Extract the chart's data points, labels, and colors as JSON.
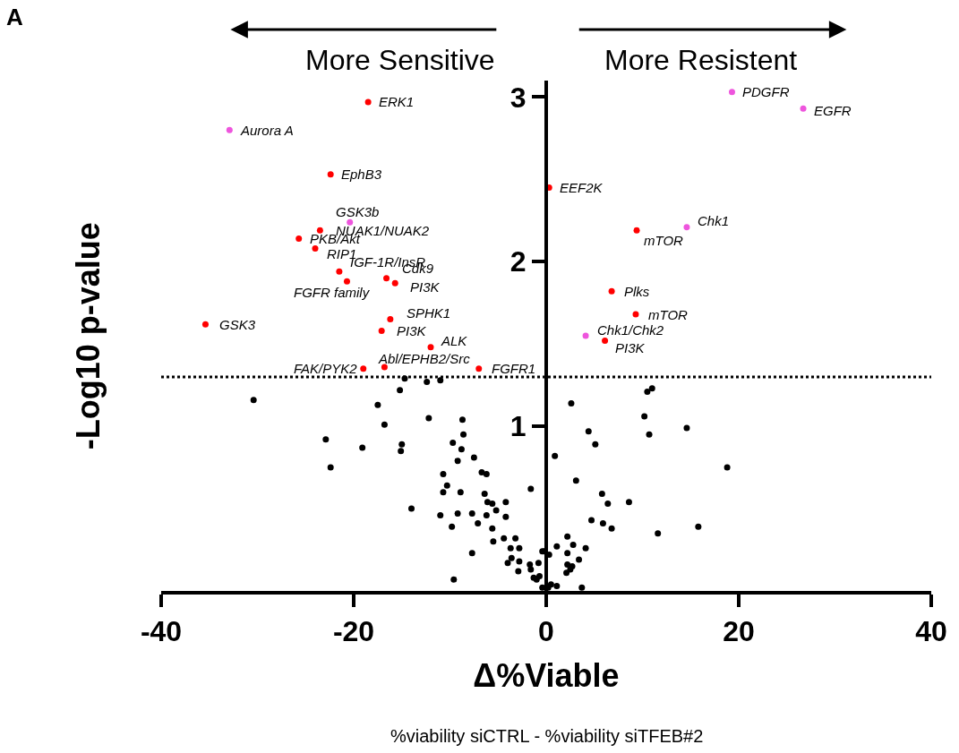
{
  "chart_data": {
    "type": "scatter",
    "xlabel": "Δ%Viable",
    "ylabel": "-Log10 p-value",
    "xlim": [
      -40,
      40
    ],
    "xticks": [
      -40,
      -20,
      0,
      20,
      40
    ],
    "ylim": [
      0,
      3.1
    ],
    "yticks": [
      1,
      2,
      3
    ],
    "marker": "circle",
    "ref_lines": [
      {
        "axis": "y",
        "value": 1.3,
        "line_style": "dotted",
        "color": "#000000"
      }
    ],
    "series": [
      {
        "color": "#ff0000",
        "x": [
          -18.5,
          -22.4,
          0.3,
          -23.5,
          -25.7,
          -24.0,
          -21.5,
          -20.7,
          -16.6,
          -15.7,
          -35.4,
          -16.2,
          -17.1,
          -12.0,
          -16.8,
          -19.0,
          -7.0,
          9.4,
          6.8,
          9.3,
          6.1
        ],
        "values": [
          2.97,
          2.53,
          2.45,
          2.19,
          2.14,
          2.08,
          1.94,
          1.88,
          1.9,
          1.87,
          1.62,
          1.65,
          1.58,
          1.48,
          1.36,
          1.35,
          1.35,
          2.19,
          1.82,
          1.68,
          1.52
        ]
      },
      {
        "color": "#ee55dd",
        "x": [
          -32.9,
          -20.4,
          19.3,
          26.7,
          14.6,
          4.1
        ],
        "values": [
          2.8,
          2.24,
          3.03,
          2.93,
          2.21,
          1.55
        ]
      },
      {
        "color": "#000000",
        "x": [
          -30.4,
          -15.2,
          -17.5,
          -16.8,
          -12.2,
          -8.7,
          -8.6,
          -22.9,
          -22.4,
          -19.1,
          -15.0,
          -15.1,
          -9.7,
          -8.8,
          -9.2,
          -7.5,
          -6.7,
          -6.2,
          -10.7,
          -10.3,
          -10.7,
          -8.9,
          -6.4,
          -6.1,
          -5.6,
          -4.2,
          -14.0,
          -11.0,
          -9.2,
          -7.7,
          -6.2,
          -5.2,
          -4.2,
          -7.1,
          -9.8,
          -5.6,
          -5.5,
          -4.4,
          -3.2,
          -3.7,
          -2.8,
          -7.7,
          -1.6,
          -0.4,
          0.3,
          -4.0,
          -3.6,
          -2.8,
          -1.7,
          -0.8,
          -2.9,
          -1.6,
          -1.3,
          -1.0,
          -0.7,
          -9.6,
          -0.4,
          0.2,
          -12.4,
          -11.0,
          -14.7,
          2.6,
          4.4,
          5.1,
          0.9,
          3.1,
          5.8,
          6.4,
          8.6,
          4.7,
          5.9,
          6.8,
          10.5,
          11.0,
          10.2,
          10.7,
          14.6,
          18.8,
          15.8,
          11.6,
          2.2,
          1.1,
          2.8,
          4.1,
          2.2,
          3.4,
          2.2,
          2.7,
          2.5,
          2.1,
          -0.2,
          1.1,
          0.5,
          3.7
        ],
        "values": [
          1.16,
          1.22,
          1.13,
          1.01,
          1.05,
          1.04,
          0.95,
          0.92,
          0.75,
          0.87,
          0.89,
          0.85,
          0.9,
          0.86,
          0.79,
          0.81,
          0.72,
          0.71,
          0.71,
          0.64,
          0.6,
          0.6,
          0.59,
          0.54,
          0.53,
          0.54,
          0.5,
          0.46,
          0.47,
          0.47,
          0.46,
          0.49,
          0.45,
          0.41,
          0.39,
          0.38,
          0.3,
          0.32,
          0.32,
          0.26,
          0.26,
          0.23,
          0.62,
          0.24,
          0.22,
          0.17,
          0.2,
          0.18,
          0.16,
          0.17,
          0.12,
          0.13,
          0.08,
          0.07,
          0.09,
          0.07,
          0.02,
          0.02,
          1.27,
          1.28,
          1.29,
          1.14,
          0.97,
          0.89,
          0.82,
          0.67,
          0.59,
          0.53,
          0.54,
          0.43,
          0.41,
          0.38,
          1.21,
          1.23,
          1.06,
          0.95,
          0.99,
          0.75,
          0.39,
          0.35,
          0.33,
          0.27,
          0.28,
          0.26,
          0.23,
          0.19,
          0.16,
          0.15,
          0.13,
          0.11,
          0.24,
          0.03,
          0.04,
          0.02
        ]
      }
    ],
    "annotations": [
      "A",
      "More Sensitive",
      "More Resistent",
      "%viability siCTRL - %viability siTFEB#2",
      {
        "text": "ERK1",
        "x": -18.5,
        "y": 2.97
      },
      {
        "text": "Aurora A",
        "x": -32.9,
        "y": 2.8
      },
      {
        "text": "EphB3",
        "x": -22.4,
        "y": 2.53
      },
      {
        "text": "EEF2K",
        "x": 0.3,
        "y": 2.45
      },
      {
        "text": "GSK3b",
        "x": -20.4,
        "y": 2.24
      },
      {
        "text": "NUAK1/NUAK2",
        "x": -23.5,
        "y": 2.19
      },
      {
        "text": "PKB/Akt",
        "x": -25.7,
        "y": 2.14
      },
      {
        "text": "RIP1",
        "x": -24.0,
        "y": 2.08
      },
      {
        "text": "IGF-1R/InsR",
        "x": -21.5,
        "y": 1.94
      },
      {
        "text": "FGFR family",
        "x": -20.7,
        "y": 1.88
      },
      {
        "text": "Cdk9",
        "x": -16.6,
        "y": 1.9
      },
      {
        "text": "PI3K",
        "x": -15.7,
        "y": 1.87
      },
      {
        "text": "GSK3",
        "x": -35.4,
        "y": 1.62
      },
      {
        "text": "SPHK1",
        "x": -16.2,
        "y": 1.65
      },
      {
        "text": "PI3K",
        "x": -17.1,
        "y": 1.58
      },
      {
        "text": "ALK",
        "x": -12.0,
        "y": 1.48
      },
      {
        "text": "Abl/EPHB2/Src",
        "x": -16.8,
        "y": 1.36
      },
      {
        "text": "FAK/PYK2",
        "x": -19.0,
        "y": 1.35
      },
      {
        "text": "FGFR1",
        "x": -7.0,
        "y": 1.35
      },
      {
        "text": "PDGFR",
        "x": 19.3,
        "y": 3.03
      },
      {
        "text": "EGFR",
        "x": 26.7,
        "y": 2.93
      },
      {
        "text": "Chk1",
        "x": 14.6,
        "y": 2.21
      },
      {
        "text": "mTOR",
        "x": 9.4,
        "y": 2.19
      },
      {
        "text": "Plks",
        "x": 6.8,
        "y": 1.82
      },
      {
        "text": "mTOR",
        "x": 9.3,
        "y": 1.68
      },
      {
        "text": "Chk1/Chk2",
        "x": 4.1,
        "y": 1.55
      },
      {
        "text": "PI3K",
        "x": 6.1,
        "y": 1.52
      }
    ]
  }
}
